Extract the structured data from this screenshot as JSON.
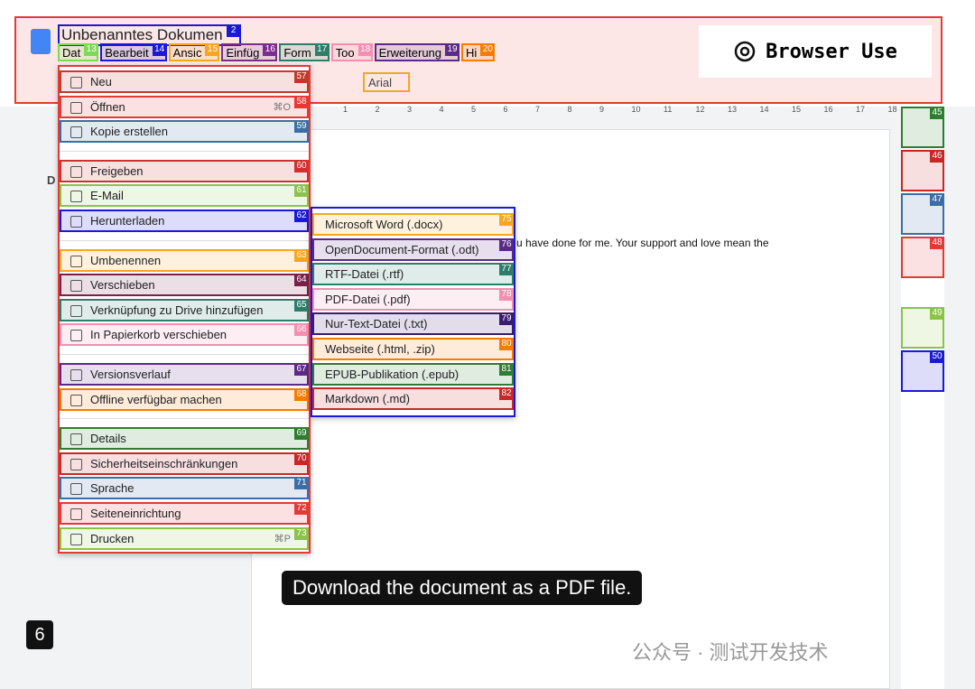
{
  "header": {
    "title": "Unbenanntes Dokumen",
    "title_badge": "2",
    "menus": [
      {
        "label": "Dat",
        "badge": "13",
        "color": "#7ed957"
      },
      {
        "label": "Bearbeit",
        "badge": "14",
        "color": "#1a1ad6"
      },
      {
        "label": "Ansic",
        "badge": "15",
        "color": "#f5a623"
      },
      {
        "label": "Einfüg",
        "badge": "16",
        "color": "#7b2d8e"
      },
      {
        "label": "Form",
        "badge": "17",
        "color": "#2e7d6b"
      },
      {
        "label": "Too",
        "badge": "18",
        "color": "#f48fb1"
      },
      {
        "label": "Erweiterung",
        "badge": "19",
        "color": "#5b2a86"
      },
      {
        "label": "Hi",
        "badge": "20",
        "color": "#f57c00"
      }
    ],
    "font": "Arial",
    "brand": "Browser Use"
  },
  "file_menu": {
    "groups": [
      [
        {
          "label": "Neu",
          "badge": "57",
          "color": "#c0392b"
        },
        {
          "label": "Öffnen",
          "badge": "58",
          "color": "#e53935",
          "shortcut": "⌘O"
        },
        {
          "label": "Kopie erstellen",
          "badge": "59",
          "color": "#3b6ea5"
        }
      ],
      [
        {
          "label": "Freigeben",
          "badge": "60",
          "color": "#d32f2f"
        },
        {
          "label": "E-Mail",
          "badge": "61",
          "color": "#8bc34a"
        },
        {
          "label": "Herunterladen",
          "badge": "62",
          "color": "#1a1ad6"
        }
      ],
      [
        {
          "label": "Umbenennen",
          "badge": "63",
          "color": "#f5a623"
        },
        {
          "label": "Verschieben",
          "badge": "64",
          "color": "#7b1f4b"
        },
        {
          "label": "Verknüpfung zu Drive hinzufügen",
          "badge": "65",
          "color": "#2e7d6b"
        },
        {
          "label": "In Papierkorb verschieben",
          "badge": "66",
          "color": "#f48fb1"
        }
      ],
      [
        {
          "label": "Versionsverlauf",
          "badge": "67",
          "color": "#5b2a86"
        },
        {
          "label": "Offline verfügbar machen",
          "badge": "68",
          "color": "#f57c00"
        }
      ],
      [
        {
          "label": "Details",
          "badge": "69",
          "color": "#2e7d32"
        },
        {
          "label": "Sicherheitseinschränkungen",
          "badge": "70",
          "color": "#c62828"
        },
        {
          "label": "Sprache",
          "badge": "71",
          "color": "#3b6ea5"
        },
        {
          "label": "Seiteneinrichtung",
          "badge": "72",
          "color": "#e53935"
        },
        {
          "label": "Drucken",
          "badge": "73",
          "color": "#8bc34a",
          "shortcut": "⌘P"
        }
      ]
    ]
  },
  "download_menu": {
    "items": [
      {
        "label": "Microsoft Word (.docx)",
        "badge": "75",
        "color": "#f5a623"
      },
      {
        "label": "OpenDocument-Format (.odt)",
        "badge": "76",
        "color": "#5b2a86"
      },
      {
        "label": "RTF-Datei (.rtf)",
        "badge": "77",
        "color": "#2e7d6b"
      },
      {
        "label": "PDF-Datei (.pdf)",
        "badge": "78",
        "color": "#f48fb1"
      },
      {
        "label": "Nur-Text-Datei (.txt)",
        "badge": "79",
        "color": "#3a1d6e"
      },
      {
        "label": "Webseite (.html, .zip)",
        "badge": "80",
        "color": "#f57c00"
      },
      {
        "label": "EPUB-Publikation (.epub)",
        "badge": "81",
        "color": "#2e7d32"
      },
      {
        "label": "Markdown (.md)",
        "badge": "82",
        "color": "#c62828"
      }
    ]
  },
  "ruler": [
    "1",
    "2",
    "3",
    "4",
    "5",
    "6",
    "7",
    "8",
    "9",
    "10",
    "11",
    "12",
    "13",
    "14",
    "15",
    "16",
    "17",
    "18"
  ],
  "document": {
    "outline_initial": "D",
    "body_text": "u have done for me. Your support and love mean the"
  },
  "sidebar": [
    {
      "badge": "45",
      "color": "#2e7d32"
    },
    {
      "badge": "46",
      "color": "#c62828"
    },
    {
      "badge": "47",
      "color": "#3b6ea5"
    },
    {
      "badge": "48",
      "color": "#e53935"
    },
    {
      "badge": "49",
      "color": "#8bc34a"
    },
    {
      "badge": "50",
      "color": "#1a1ad6"
    }
  ],
  "caption": "Download the document as a PDF file.",
  "step": "6",
  "watermark": "公众号 · 测试开发技术"
}
